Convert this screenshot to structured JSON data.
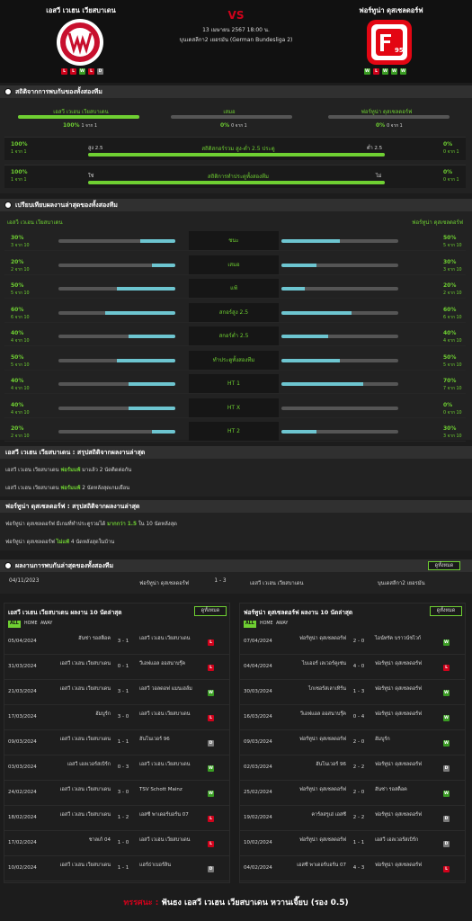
{
  "home": {
    "name": "เอสวี เวเฮน เวียสบาเดน",
    "form": [
      "L",
      "L",
      "W",
      "L",
      "D"
    ]
  },
  "away": {
    "name": "ฟอร์ทูน่า ดุสเซลดอร์ฟ",
    "form": [
      "W",
      "L",
      "W",
      "W",
      "W"
    ]
  },
  "match": {
    "vs": "VS",
    "date": "13 เมษายน 2567 18:00 น.",
    "comp": "บุนเดสลีกา2 เยอรมัน (German Bundesliga 2)"
  },
  "h2h": {
    "title": "สถิติจากการพบกันของทั้งสองทีม",
    "home_label": "เอสวี เวเฮน เวียสบาเดน",
    "draw_label": "เสมอ",
    "away_label": "ฟอร์ทูน่า ดุสเซลดอร์ฟ",
    "home_pct": "100%",
    "home_cnt": "1 จาก 1",
    "draw_pct": "0%",
    "draw_cnt": "0 จาก 1",
    "away_pct": "0%",
    "away_cnt": "0 จาก 1",
    "home_val": 1.0,
    "draw_val": 0.0,
    "away_val": 0.0,
    "ou": {
      "lp": "100%",
      "ls": "1 จาก 1",
      "left": "สูง 2.5",
      "mid": "สถิติสกอร์รวม สูง-ต่ำ 2.5 ประตู",
      "right": "ต่ำ 2.5",
      "rp": "0%",
      "rs": "0 จาก 1",
      "val": 1.0
    },
    "bt": {
      "lp": "100%",
      "ls": "1 จาก 1",
      "left": "ใช่",
      "mid": "สถิติการทำประตูทั้งสองทีม",
      "right": "ไม่",
      "rp": "0%",
      "rs": "0 จาก 1",
      "val": 1.0
    }
  },
  "cmp": {
    "title": "เปรียบเทียบผลงานล่าสุดของทั้งสองทีม",
    "home": "เอสวี เวเฮน เวียสบาเดน",
    "away": "ฟอร์ทูน่า ดุสเซลดอร์ฟ",
    "rows": [
      {
        "label": "ชนะ",
        "lp": "30%",
        "ls": "3 จาก 10",
        "lv": 0.3,
        "rp": "50%",
        "rs": "5 จาก 10",
        "rv": 0.5
      },
      {
        "label": "เสมอ",
        "lp": "20%",
        "ls": "2 จาก 10",
        "lv": 0.2,
        "rp": "30%",
        "rs": "3 จาก 10",
        "rv": 0.3
      },
      {
        "label": "แพ้",
        "lp": "50%",
        "ls": "5 จาก 10",
        "lv": 0.5,
        "rp": "20%",
        "rs": "2 จาก 10",
        "rv": 0.2
      },
      {
        "label": "สกอร์สูง 2.5",
        "lp": "60%",
        "ls": "6 จาก 10",
        "lv": 0.6,
        "rp": "60%",
        "rs": "6 จาก 10",
        "rv": 0.6
      },
      {
        "label": "สกอร์ต่ำ 2.5",
        "lp": "40%",
        "ls": "4 จาก 10",
        "lv": 0.4,
        "rp": "40%",
        "rs": "4 จาก 10",
        "rv": 0.4
      },
      {
        "label": "ทำประตูทั้งสองทีม",
        "lp": "50%",
        "ls": "5 จาก 10",
        "lv": 0.5,
        "rp": "50%",
        "rs": "5 จาก 10",
        "rv": 0.5
      },
      {
        "label": "HT 1",
        "lp": "40%",
        "ls": "4 จาก 10",
        "lv": 0.4,
        "rp": "70%",
        "rs": "7 จาก 10",
        "rv": 0.7
      },
      {
        "label": "HT X",
        "lp": "40%",
        "ls": "4 จาก 10",
        "lv": 0.4,
        "rp": "0%",
        "rs": "0 จาก 10",
        "rv": 0.0
      },
      {
        "label": "HT 2",
        "lp": "20%",
        "ls": "2 จาก 10",
        "lv": 0.2,
        "rp": "30%",
        "rs": "3 จาก 10",
        "rv": 0.3
      }
    ]
  },
  "sum_home": {
    "title": "เอสวี เวเฮน เวียสบาเดน : สรุปสถิติจากผลงานล่าสุด",
    "l1a": "เอสวี เวเฮน เวียสบาเดน",
    "l1b": "ฟอร์มแพ้",
    "l1c": "มาแล้ว 2 นัดติดต่อกัน",
    "l2a": "เอสวี เวเฮน เวียสบาเดน",
    "l2b": "ฟอร์มแพ้",
    "l2c": "2 นัดหลังสุดเกมเยือน"
  },
  "sum_away": {
    "title": "ฟอร์ทูน่า ดุสเซลดอร์ฟ : สรุปสถิติจากผลงานล่าสุด",
    "l1a": "ฟอร์ทูน่า ดุสเซลดอร์ฟ",
    "l1b": "มีเกมที่ทำประตูรวมได้",
    "l1c": "มากกว่า 1.5",
    "l1d": "ใน 10 นัดหลังสุด",
    "l2a": "ฟอร์ทูน่า ดุสเซลดอร์ฟ",
    "l2b": "ไม่แพ้",
    "l2c": "4 นัดหลังสุดในบ้าน"
  },
  "past": {
    "title": "ผลงานการพบกันล่าสุดของทั้งสองทีม",
    "btn": "ดูทั้งหมด",
    "date": "04/11/2023",
    "home": "ฟอร์ทูน่า ดุสเซลดอร์ฟ",
    "score": "1 - 3",
    "away": "เอสวี เวเฮน เวียสบาเดน",
    "comp": "บุนเดสลีกา2 เยอรมัน"
  },
  "last_home": {
    "title": "เอสวี เวเฮน เวียสบาเดน ผลงาน 10 นัดล่าสุด",
    "btn": "ดูทั้งหมด",
    "tabs": [
      "ALL",
      "HOME",
      "AWAY"
    ],
    "rows": [
      {
        "d": "05/04/2024",
        "h": "ฮันซ่า รอสต็อค",
        "s": "3 - 1",
        "a": "เอสวี เวเฮน เวียสบาเดน",
        "r": "L"
      },
      {
        "d": "31/03/2024",
        "h": "เอสวี เวเฮน เวียสบาเดน",
        "s": "0 - 1",
        "a": "วีเอฟแอล ออสนาบรุ๊ค",
        "r": "L"
      },
      {
        "d": "21/03/2024",
        "h": "เอสวี เวเฮน เวียสบาเดน",
        "s": "3 - 1",
        "a": "เอสวี วอลดอฟ แมนเฮล์ม",
        "r": "W"
      },
      {
        "d": "17/03/2024",
        "h": "ฮัมบูร์ก",
        "s": "3 - 0",
        "a": "เอสวี เวเฮน เวียสบาเดน",
        "r": "L"
      },
      {
        "d": "09/03/2024",
        "h": "เอสวี เวเฮน เวียสบาเดน",
        "s": "1 - 1",
        "a": "ฮันโนเวอร์ 96",
        "r": "D"
      },
      {
        "d": "03/03/2024",
        "h": "เอสวี เอลเวอร์สเบิร์ก",
        "s": "0 - 3",
        "a": "เอสวี เวเฮน เวียสบาเดน",
        "r": "W"
      },
      {
        "d": "24/02/2024",
        "h": "เอสวี เวเฮน เวียสบาเดน",
        "s": "3 - 0",
        "a": "TSV Schott Mainz",
        "r": "W"
      },
      {
        "d": "18/02/2024",
        "h": "เอสวี เวเฮน เวียสบาเดน",
        "s": "1 - 2",
        "a": "เอสซี พาเดอร์บอร์น 07",
        "r": "L"
      },
      {
        "d": "17/02/2024",
        "h": "ชาลเก้ 04",
        "s": "1 - 0",
        "a": "เอสวี เวเฮน เวียสบาเดน",
        "r": "L"
      },
      {
        "d": "10/02/2024",
        "h": "เอสวี เวเฮน เวียสบาเดน",
        "s": "1 - 1",
        "a": "แฮร์ธ่าเบอร์ลิน",
        "r": "D"
      }
    ]
  },
  "last_away": {
    "title": "ฟอร์ทูน่า ดุสเซลดอร์ฟ ผลงาน 10 นัดล่าสุด",
    "btn": "ดูทั้งหมด",
    "tabs": [
      "ALL",
      "HOME",
      "AWAY"
    ],
    "rows": [
      {
        "d": "07/04/2024",
        "h": "ฟอร์ทูน่า ดุสเซลดอร์ฟ",
        "s": "2 - 0",
        "a": "ไอน์ทรัค บราวน์ชไวก์",
        "r": "W"
      },
      {
        "d": "04/04/2024",
        "h": "ไบเออร์ เลเวอร์คูเซ่น",
        "s": "4 - 0",
        "a": "ฟอร์ทูน่า ดุสเซลดอร์ฟ",
        "r": "L"
      },
      {
        "d": "30/03/2024",
        "h": "ไกเซอร์สเลาเทิร์น",
        "s": "1 - 3",
        "a": "ฟอร์ทูน่า ดุสเซลดอร์ฟ",
        "r": "W"
      },
      {
        "d": "16/03/2024",
        "h": "วีเอฟแอล ออสนาบรุ๊ค",
        "s": "0 - 4",
        "a": "ฟอร์ทูน่า ดุสเซลดอร์ฟ",
        "r": "W"
      },
      {
        "d": "09/03/2024",
        "h": "ฟอร์ทูน่า ดุสเซลดอร์ฟ",
        "s": "2 - 0",
        "a": "ฮัมบูร์ก",
        "r": "W"
      },
      {
        "d": "02/03/2024",
        "h": "ฮันโนเวอร์ 96",
        "s": "2 - 2",
        "a": "ฟอร์ทูน่า ดุสเซลดอร์ฟ",
        "r": "D"
      },
      {
        "d": "25/02/2024",
        "h": "ฟอร์ทูน่า ดุสเซลดอร์ฟ",
        "s": "2 - 0",
        "a": "ฮันซ่า รอสต็อค",
        "r": "W"
      },
      {
        "d": "19/02/2024",
        "h": "คาร์ลสรูเฮ่ เอสซี",
        "s": "2 - 2",
        "a": "ฟอร์ทูน่า ดุสเซลดอร์ฟ",
        "r": "D"
      },
      {
        "d": "10/02/2024",
        "h": "ฟอร์ทูน่า ดุสเซลดอร์ฟ",
        "s": "1 - 1",
        "a": "เอสวี เอลเวอร์สเบิร์ก",
        "r": "D"
      },
      {
        "d": "04/02/2024",
        "h": "เอสซี พาเดอร์บอร์น 07",
        "s": "4 - 3",
        "a": "ฟอร์ทูน่า ดุสเซลดอร์ฟ",
        "r": "L"
      }
    ]
  },
  "tip": {
    "label": "ทรรศนะ :",
    "text": "ฟันธง เอสวี เวเฮน เวียสบาเดน หวานเจี๊ยบ (รอง 0.5)"
  },
  "colors": {
    "accent": "#6fd032",
    "bar": "#6dc5d0",
    "win": "#3a9d23",
    "loss": "#d0021b",
    "draw": "#7a7a7a"
  }
}
